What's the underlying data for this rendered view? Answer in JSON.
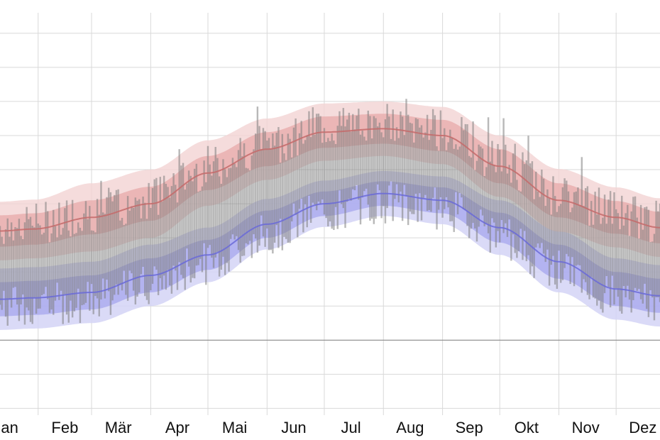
{
  "chart_data": {
    "type": "area",
    "title": "",
    "xlabel": "",
    "ylabel": "",
    "x_unit": "day_of_year",
    "y_unit": "deg_c_estimated",
    "xlim": [
      12,
      358
    ],
    "ylim": [
      -11,
      48
    ],
    "zero_line": 0,
    "grid": true,
    "month_labels": [
      "Jan",
      "Feb",
      "Mär",
      "Apr",
      "Mai",
      "Jun",
      "Jul",
      "Aug",
      "Sep",
      "Okt",
      "Nov",
      "Dez"
    ],
    "month_label_days": [
      15,
      46,
      74,
      105,
      135,
      166,
      196,
      227,
      258,
      288,
      319,
      349
    ],
    "month_boundary_days": [
      32,
      60,
      91,
      121,
      152,
      182,
      213,
      244,
      274,
      305,
      335
    ],
    "normal_high": {
      "days": [
        12,
        30,
        60,
        91,
        121,
        152,
        182,
        213,
        244,
        274,
        305,
        335,
        358
      ],
      "mean": [
        16,
        16.3,
        18,
        20,
        24.5,
        28,
        30.5,
        31,
        30,
        25.5,
        20.5,
        18,
        16.5
      ],
      "inner_band": [
        2.3,
        2.3,
        2.5,
        2.5,
        2.5,
        2.5,
        2.3,
        2.2,
        2.3,
        2.5,
        2.5,
        2.4,
        2.3
      ],
      "outer_band": [
        4.3,
        4.3,
        5,
        5,
        4.8,
        4.5,
        4.2,
        4,
        4.2,
        4.5,
        4.6,
        4.4,
        4.3
      ]
    },
    "normal_low": {
      "days": [
        12,
        30,
        60,
        91,
        121,
        152,
        182,
        213,
        244,
        274,
        305,
        335,
        358
      ],
      "mean": [
        6,
        6.2,
        7,
        9.5,
        12.5,
        17,
        20,
        21.5,
        20.5,
        16.5,
        11.5,
        7.5,
        6.5
      ],
      "inner_band": [
        2.5,
        2.5,
        2.5,
        2.5,
        2.2,
        2,
        1.8,
        1.8,
        1.9,
        2.2,
        2.5,
        2.5,
        2.5
      ],
      "outer_band": [
        4.5,
        4.5,
        4.5,
        4.5,
        4,
        3.7,
        3.4,
        3.3,
        3.5,
        4,
        4.5,
        4.5,
        4.5
      ]
    },
    "observed_range_model": {
      "seed": 7,
      "low_offset": -1.2,
      "high_offset": 0.8,
      "noise": 3.2
    },
    "colors": {
      "high_line": "#c46a6a",
      "high_band_inner": "#e7aaaa",
      "high_band_outer": "#f3d3d3",
      "low_line": "#6a6ad8",
      "low_band_inner": "#a9a9ee",
      "low_band_outer": "#d3d3f6",
      "observed_bar": "#7d7d7d",
      "grid": "#d9d9d9",
      "zero_line": "#888888"
    }
  }
}
